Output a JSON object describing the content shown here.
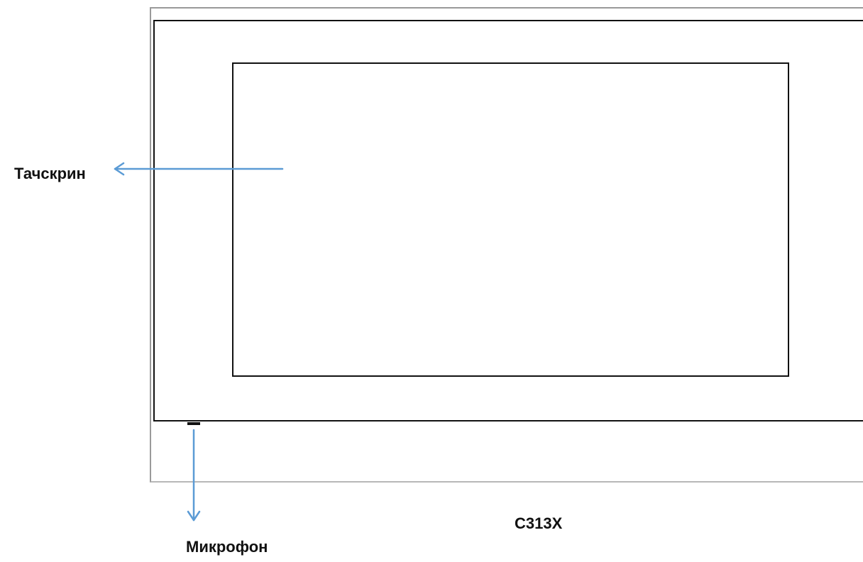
{
  "labels": {
    "touchscreen": "Тачскрин",
    "microphone": "Микрофон",
    "model": "C313X"
  },
  "colors": {
    "arrow": "#5b9bd5",
    "outline": "#111111",
    "housing": "#9a9a9a"
  }
}
